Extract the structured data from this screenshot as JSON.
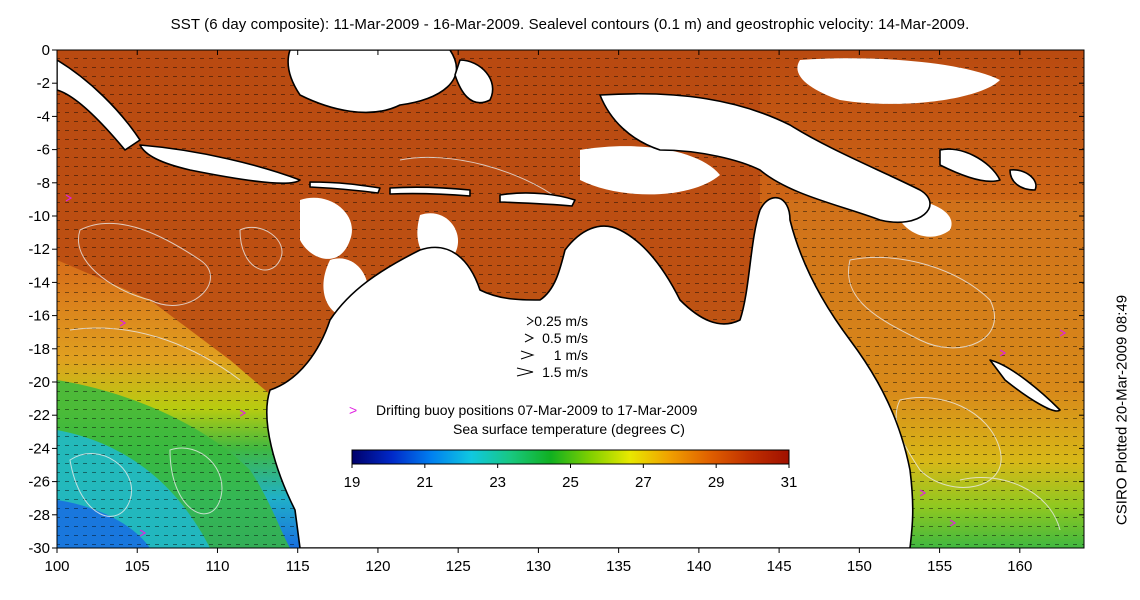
{
  "title": "SST (6 day composite): 11-Mar-2009 - 16-Mar-2009. Sealevel contours (0.1 m) and geostrophic velocity: 14-Mar-2009.",
  "credit": "CSIRO Plotted 20-Mar-2009 08:49",
  "axes": {
    "x_ticks": [
      "100",
      "105",
      "110",
      "115",
      "120",
      "125",
      "130",
      "135",
      "140",
      "145",
      "150",
      "155",
      "160"
    ],
    "y_ticks": [
      "0",
      "-2",
      "-4",
      "-6",
      "-8",
      "-10",
      "-12",
      "-14",
      "-16",
      "-18",
      "-20",
      "-22",
      "-24",
      "-26",
      "-28",
      "-30"
    ],
    "xlim": [
      100,
      164
    ],
    "ylim": [
      -30,
      0
    ]
  },
  "velocity_legend": {
    "items": [
      {
        "label": "0.25 m/s",
        "speed": 0.25
      },
      {
        "label": "0.5 m/s",
        "speed": 0.5
      },
      {
        "label": "1 m/s",
        "speed": 1
      },
      {
        "label": "1.5 m/s",
        "speed": 1.5
      }
    ]
  },
  "buoy_legend": {
    "symbol": ">",
    "label": "Drifting buoy positions 07-Mar-2009 to 17-Mar-2009",
    "color": "#e020e0"
  },
  "colorbar": {
    "title": "Sea surface temperature (degrees C)",
    "ticks": [
      "19",
      "21",
      "23",
      "25",
      "27",
      "29",
      "31"
    ],
    "range": [
      19,
      31
    ],
    "colors": [
      "#00006a",
      "#0028c8",
      "#0080f0",
      "#10c8e0",
      "#18c880",
      "#10b020",
      "#80d000",
      "#e8e800",
      "#f0a000",
      "#e06000",
      "#c03000",
      "#a01000"
    ]
  },
  "palette": {
    "ocean_warm": "#b8430c",
    "ocean_orange": "#e07a16",
    "ocean_yellow": "#d8d810",
    "ocean_green": "#30b030",
    "ocean_cyan": "#20b8d8",
    "land": "#ffffff",
    "coast": "#000000",
    "contour": "#e8e8e8"
  }
}
